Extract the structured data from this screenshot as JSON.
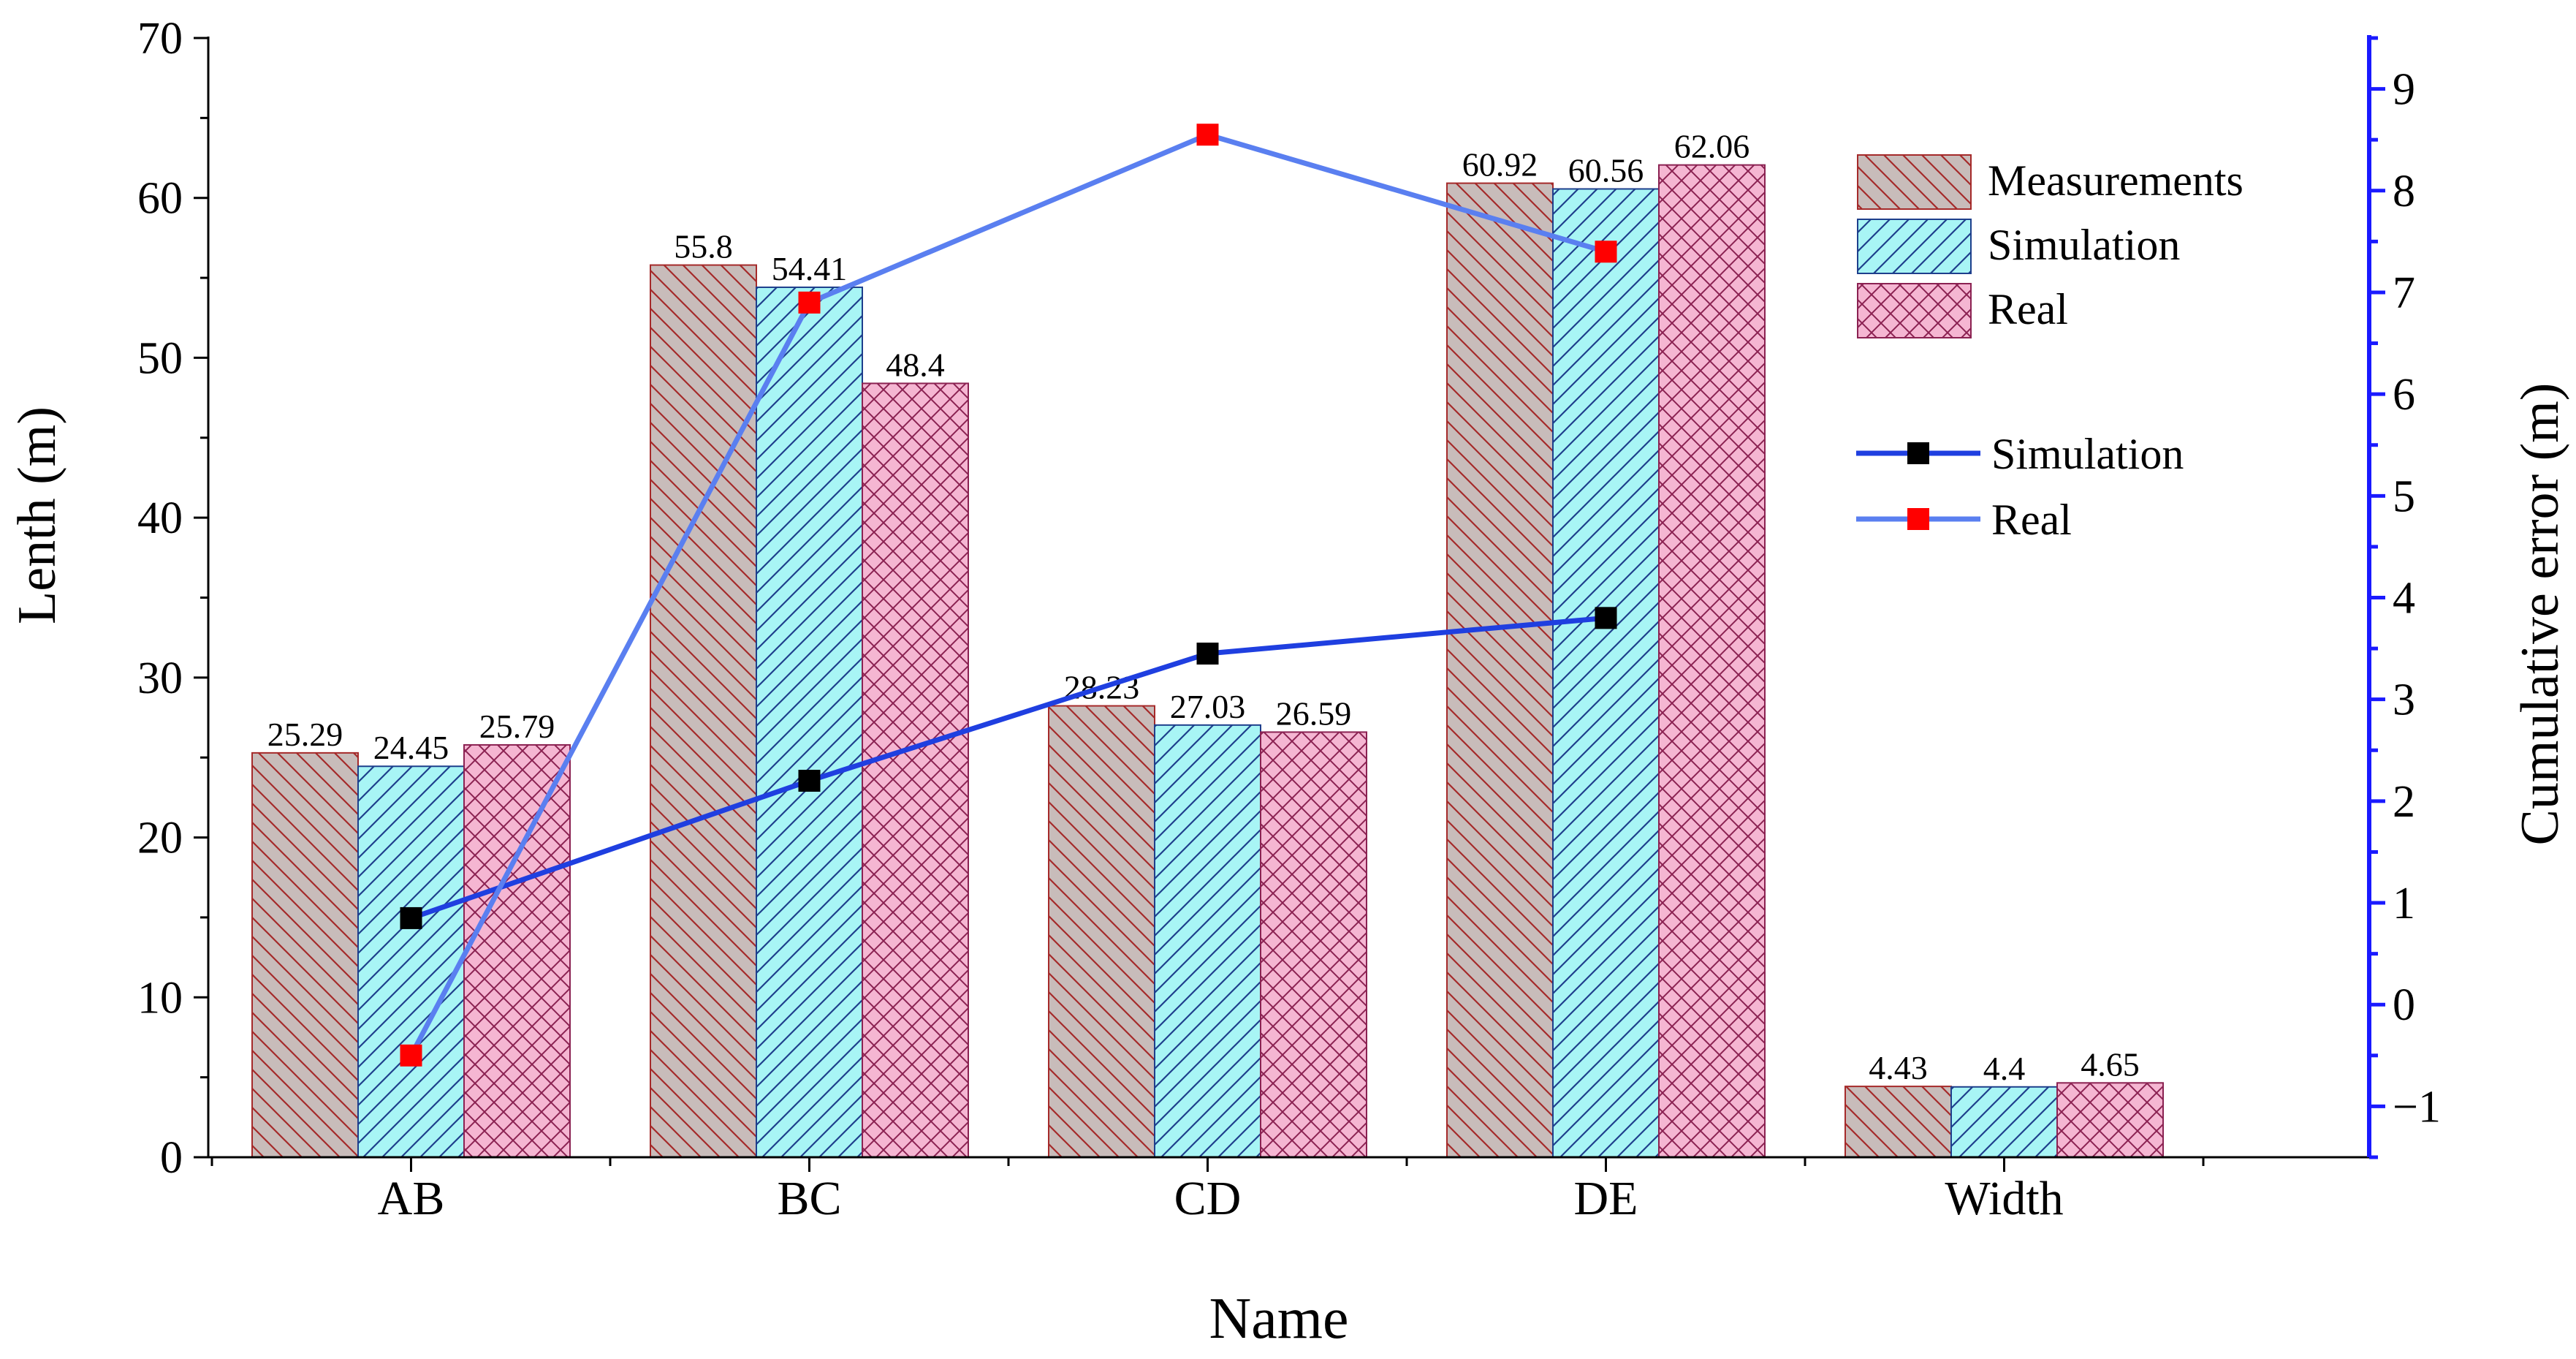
{
  "chart_data": {
    "type": "bar",
    "categories": [
      "AB",
      "BC",
      "CD",
      "DE",
      "Width"
    ],
    "xlabel": "Name",
    "ylabel": "Lenth (m)",
    "ylim": [
      0,
      70
    ],
    "yticks": [
      0,
      10,
      20,
      30,
      40,
      50,
      60,
      70
    ],
    "y2label": "Cumulative error (m)",
    "y2lim": [
      -1.5,
      9.5
    ],
    "y2ticks": [
      -1,
      0,
      1,
      2,
      3,
      4,
      5,
      6,
      7,
      8,
      9
    ],
    "y2ticklabels": [
      "−1",
      "0",
      "1",
      "2",
      "3",
      "4",
      "5",
      "6",
      "7",
      "8",
      "9"
    ],
    "series": [
      {
        "name": "Measurements",
        "values": [
          25.29,
          55.8,
          28.23,
          60.92,
          4.43
        ],
        "labels": [
          "25.29",
          "55.8",
          "28.23",
          "60.92",
          "4.43"
        ],
        "fill": "#c8bcba",
        "stroke": "#a52a2a",
        "hatch": "diag-back"
      },
      {
        "name": "Simulation",
        "values": [
          24.45,
          54.41,
          27.03,
          60.56,
          4.4
        ],
        "labels": [
          "24.45",
          "54.41",
          "27.03",
          "60.56",
          "4.4"
        ],
        "fill": "#a8f5f5",
        "stroke": "#1e3f8c",
        "hatch": "diag-fwd"
      },
      {
        "name": "Real",
        "values": [
          25.79,
          48.4,
          26.59,
          62.06,
          4.65
        ],
        "labels": [
          "25.79",
          "48.4",
          "26.59",
          "62.06",
          "4.65"
        ],
        "fill": "#f5b6d2",
        "stroke": "#8b2252",
        "hatch": "cross"
      }
    ],
    "line_series": [
      {
        "name": "Simulation",
        "values": [
          0.85,
          2.2,
          3.45,
          3.8
        ],
        "color": "#1f3fe0",
        "marker": "#000000"
      },
      {
        "name": "Real",
        "values": [
          -0.5,
          6.9,
          8.55,
          7.4
        ],
        "color": "#5a7ff0",
        "marker": "#ff0000"
      }
    ],
    "legend_position": "top-right"
  }
}
